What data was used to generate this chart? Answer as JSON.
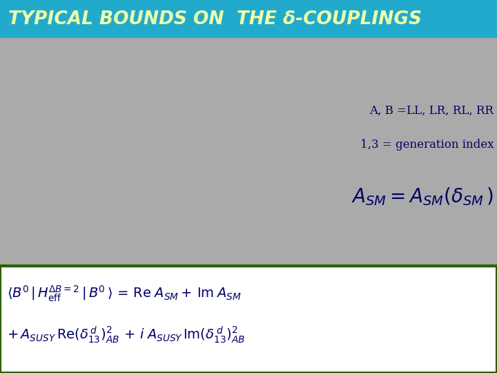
{
  "title": "TYPICAL BOUNDS ON  THE δ-COUPLINGS",
  "title_bg_color": "#22AACC",
  "title_text_color": "#EEFFAA",
  "main_bg_color": "#AAAAAA",
  "bottom_bg_color": "#FFFFFF",
  "bottom_border_color": "#2A6000",
  "dark_blue": "#000066",
  "line1": "A, B =LL, LR, RL, RR",
  "line2": "1,3 = generation index",
  "figwidth": 7.2,
  "figheight": 5.4,
  "dpi": 100
}
